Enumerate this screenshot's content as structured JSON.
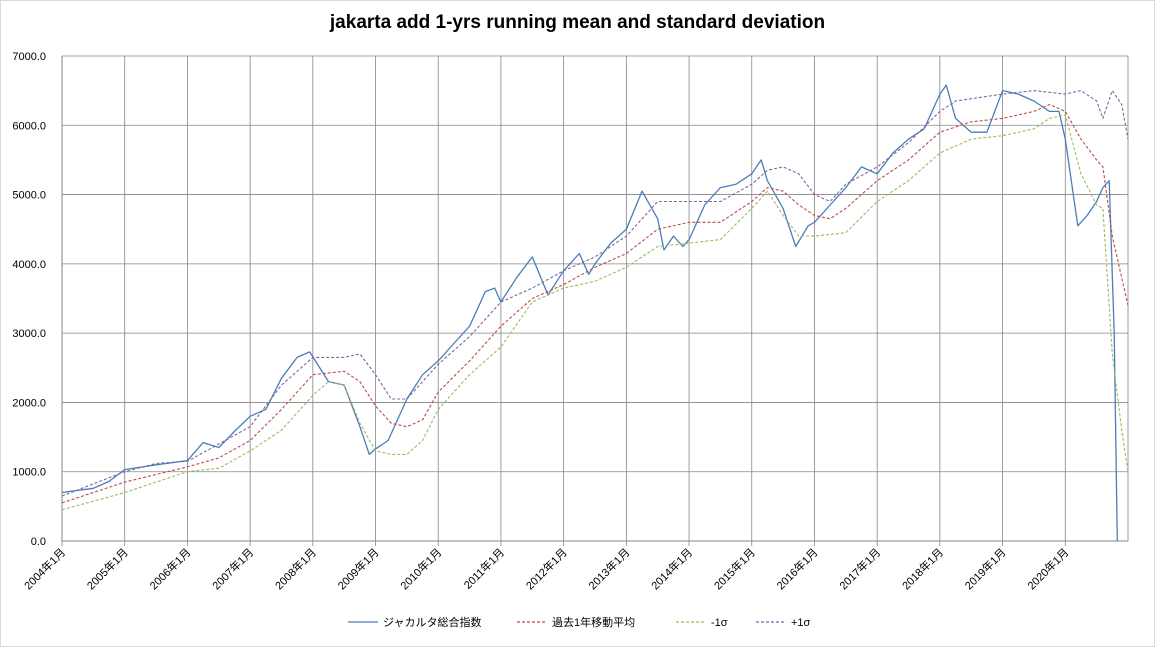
{
  "chart_data": {
    "type": "line",
    "title": "jakarta add 1-yrs running mean and standard deviation",
    "xlabel": "",
    "ylabel": "",
    "ylim": [
      0,
      7000
    ],
    "grid": true,
    "legend_position": "bottom",
    "y_ticks": [
      "0.0",
      "1000.0",
      "2000.0",
      "3000.0",
      "4000.0",
      "5000.0",
      "6000.0",
      "7000.0"
    ],
    "x_tick_labels": [
      "2004年1月",
      "2005年1月",
      "2006年1月",
      "2007年1月",
      "2008年1月",
      "2009年1月",
      "2010年1月",
      "2011年1月",
      "2012年1月",
      "2013年1月",
      "2014年1月",
      "2015年1月",
      "2016年1月",
      "2017年1月",
      "2018年1月",
      "2019年1月",
      "2020年1月"
    ],
    "x_start": 2004.0,
    "series": [
      {
        "name": "ジャカルタ総合指数",
        "color": "#4a7ebb",
        "dash": "none",
        "points": [
          [
            2004.0,
            700
          ],
          [
            2004.5,
            760
          ],
          [
            2004.75,
            860
          ],
          [
            2005.0,
            1030
          ],
          [
            2005.5,
            1100
          ],
          [
            2006.0,
            1160
          ],
          [
            2006.25,
            1420
          ],
          [
            2006.5,
            1350
          ],
          [
            2006.75,
            1580
          ],
          [
            2007.0,
            1800
          ],
          [
            2007.25,
            1900
          ],
          [
            2007.5,
            2350
          ],
          [
            2007.75,
            2650
          ],
          [
            2007.95,
            2730
          ],
          [
            2008.25,
            2300
          ],
          [
            2008.5,
            2250
          ],
          [
            2008.75,
            1650
          ],
          [
            2008.9,
            1250
          ],
          [
            2009.0,
            1330
          ],
          [
            2009.2,
            1450
          ],
          [
            2009.5,
            2050
          ],
          [
            2009.75,
            2400
          ],
          [
            2010.0,
            2600
          ],
          [
            2010.25,
            2850
          ],
          [
            2010.5,
            3100
          ],
          [
            2010.75,
            3600
          ],
          [
            2010.9,
            3650
          ],
          [
            2011.0,
            3450
          ],
          [
            2011.25,
            3800
          ],
          [
            2011.5,
            4100
          ],
          [
            2011.75,
            3550
          ],
          [
            2012.0,
            3900
          ],
          [
            2012.25,
            4150
          ],
          [
            2012.4,
            3850
          ],
          [
            2012.5,
            4000
          ],
          [
            2012.75,
            4300
          ],
          [
            2013.0,
            4500
          ],
          [
            2013.25,
            5050
          ],
          [
            2013.5,
            4650
          ],
          [
            2013.6,
            4200
          ],
          [
            2013.75,
            4400
          ],
          [
            2013.9,
            4250
          ],
          [
            2014.0,
            4350
          ],
          [
            2014.25,
            4850
          ],
          [
            2014.5,
            5100
          ],
          [
            2014.75,
            5150
          ],
          [
            2015.0,
            5300
          ],
          [
            2015.15,
            5500
          ],
          [
            2015.25,
            5200
          ],
          [
            2015.5,
            4800
          ],
          [
            2015.7,
            4250
          ],
          [
            2015.9,
            4550
          ],
          [
            2016.0,
            4600
          ],
          [
            2016.25,
            4850
          ],
          [
            2016.5,
            5100
          ],
          [
            2016.75,
            5400
          ],
          [
            2017.0,
            5300
          ],
          [
            2017.25,
            5600
          ],
          [
            2017.5,
            5800
          ],
          [
            2017.75,
            5950
          ],
          [
            2018.0,
            6450
          ],
          [
            2018.1,
            6580
          ],
          [
            2018.25,
            6100
          ],
          [
            2018.5,
            5900
          ],
          [
            2018.75,
            5900
          ],
          [
            2019.0,
            6500
          ],
          [
            2019.25,
            6450
          ],
          [
            2019.5,
            6350
          ],
          [
            2019.75,
            6200
          ],
          [
            2019.9,
            6200
          ],
          [
            2020.0,
            5800
          ],
          [
            2020.2,
            4550
          ],
          [
            2020.35,
            4700
          ],
          [
            2020.5,
            4900
          ],
          [
            2020.6,
            5100
          ],
          [
            2020.7,
            5200
          ],
          [
            2020.78,
            3000
          ],
          [
            2020.83,
            0
          ]
        ]
      },
      {
        "name": "過去1年移動平均",
        "color": "#be4b48",
        "dash": "3,2",
        "points": [
          [
            2004.0,
            550
          ],
          [
            2005.0,
            850
          ],
          [
            2006.0,
            1070
          ],
          [
            2006.5,
            1200
          ],
          [
            2007.0,
            1450
          ],
          [
            2007.5,
            1900
          ],
          [
            2008.0,
            2400
          ],
          [
            2008.5,
            2450
          ],
          [
            2008.75,
            2300
          ],
          [
            2009.0,
            1950
          ],
          [
            2009.25,
            1700
          ],
          [
            2009.5,
            1650
          ],
          [
            2009.75,
            1750
          ],
          [
            2010.0,
            2150
          ],
          [
            2010.5,
            2600
          ],
          [
            2011.0,
            3100
          ],
          [
            2011.5,
            3500
          ],
          [
            2012.0,
            3700
          ],
          [
            2012.5,
            3950
          ],
          [
            2013.0,
            4150
          ],
          [
            2013.5,
            4500
          ],
          [
            2014.0,
            4600
          ],
          [
            2014.5,
            4600
          ],
          [
            2015.0,
            4900
          ],
          [
            2015.25,
            5100
          ],
          [
            2015.5,
            5050
          ],
          [
            2015.75,
            4850
          ],
          [
            2016.0,
            4700
          ],
          [
            2016.25,
            4650
          ],
          [
            2016.5,
            4800
          ],
          [
            2017.0,
            5200
          ],
          [
            2017.5,
            5500
          ],
          [
            2018.0,
            5900
          ],
          [
            2018.5,
            6050
          ],
          [
            2019.0,
            6100
          ],
          [
            2019.5,
            6200
          ],
          [
            2019.75,
            6300
          ],
          [
            2020.0,
            6200
          ],
          [
            2020.25,
            5800
          ],
          [
            2020.5,
            5500
          ],
          [
            2020.6,
            5400
          ],
          [
            2020.75,
            4400
          ],
          [
            2020.9,
            3800
          ],
          [
            2021.0,
            3400
          ]
        ]
      },
      {
        "name": "-1σ",
        "color": "#9bbb59",
        "dash": "3,2",
        "points": [
          [
            2004.0,
            450
          ],
          [
            2005.0,
            700
          ],
          [
            2005.5,
            850
          ],
          [
            2006.0,
            1000
          ],
          [
            2006.5,
            1050
          ],
          [
            2007.0,
            1300
          ],
          [
            2007.5,
            1600
          ],
          [
            2008.0,
            2100
          ],
          [
            2008.25,
            2300
          ],
          [
            2008.5,
            2250
          ],
          [
            2008.75,
            1700
          ],
          [
            2009.0,
            1300
          ],
          [
            2009.25,
            1250
          ],
          [
            2009.5,
            1250
          ],
          [
            2009.75,
            1450
          ],
          [
            2010.0,
            1900
          ],
          [
            2010.5,
            2400
          ],
          [
            2011.0,
            2800
          ],
          [
            2011.5,
            3450
          ],
          [
            2012.0,
            3650
          ],
          [
            2012.5,
            3750
          ],
          [
            2013.0,
            3950
          ],
          [
            2013.5,
            4250
          ],
          [
            2014.0,
            4300
          ],
          [
            2014.5,
            4350
          ],
          [
            2015.0,
            4800
          ],
          [
            2015.25,
            5050
          ],
          [
            2015.5,
            4700
          ],
          [
            2015.75,
            4400
          ],
          [
            2016.0,
            4400
          ],
          [
            2016.5,
            4450
          ],
          [
            2017.0,
            4900
          ],
          [
            2017.5,
            5200
          ],
          [
            2018.0,
            5600
          ],
          [
            2018.5,
            5800
          ],
          [
            2019.0,
            5850
          ],
          [
            2019.5,
            5950
          ],
          [
            2019.75,
            6100
          ],
          [
            2020.0,
            6150
          ],
          [
            2020.25,
            5300
          ],
          [
            2020.5,
            4850
          ],
          [
            2020.6,
            4800
          ],
          [
            2020.75,
            2700
          ],
          [
            2020.9,
            1600
          ],
          [
            2021.0,
            1000
          ]
        ]
      },
      {
        "name": "+1σ",
        "color": "#8064a2",
        "dash": "3,2",
        "points": [
          [
            2004.0,
            650
          ],
          [
            2005.0,
            1000
          ],
          [
            2005.5,
            1120
          ],
          [
            2006.0,
            1150
          ],
          [
            2006.5,
            1400
          ],
          [
            2007.0,
            1650
          ],
          [
            2007.5,
            2250
          ],
          [
            2008.0,
            2650
          ],
          [
            2008.5,
            2650
          ],
          [
            2008.75,
            2700
          ],
          [
            2009.0,
            2400
          ],
          [
            2009.25,
            2050
          ],
          [
            2009.5,
            2050
          ],
          [
            2009.75,
            2300
          ],
          [
            2010.0,
            2550
          ],
          [
            2010.5,
            2950
          ],
          [
            2011.0,
            3450
          ],
          [
            2011.5,
            3650
          ],
          [
            2012.0,
            3900
          ],
          [
            2012.5,
            4100
          ],
          [
            2013.0,
            4400
          ],
          [
            2013.5,
            4900
          ],
          [
            2014.0,
            4900
          ],
          [
            2014.5,
            4900
          ],
          [
            2015.0,
            5150
          ],
          [
            2015.25,
            5350
          ],
          [
            2015.5,
            5400
          ],
          [
            2015.75,
            5300
          ],
          [
            2016.0,
            5000
          ],
          [
            2016.25,
            4900
          ],
          [
            2016.5,
            5150
          ],
          [
            2017.0,
            5400
          ],
          [
            2017.5,
            5750
          ],
          [
            2018.0,
            6200
          ],
          [
            2018.25,
            6350
          ],
          [
            2019.0,
            6450
          ],
          [
            2019.5,
            6500
          ],
          [
            2020.0,
            6450
          ],
          [
            2020.25,
            6500
          ],
          [
            2020.5,
            6350
          ],
          [
            2020.6,
            6100
          ],
          [
            2020.75,
            6500
          ],
          [
            2020.9,
            6300
          ],
          [
            2021.0,
            5800
          ]
        ]
      }
    ]
  }
}
